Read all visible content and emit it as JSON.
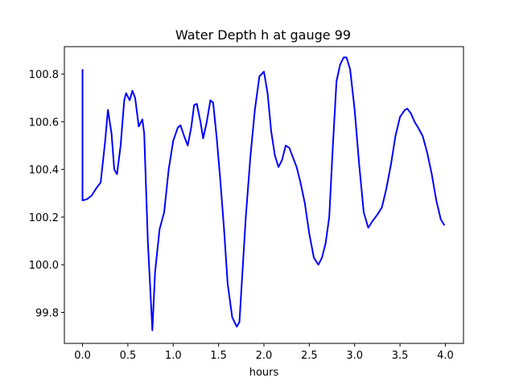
{
  "chart_data": {
    "type": "line",
    "title": "Water Depth h at gauge 99",
    "xlabel": "hours",
    "ylabel": "",
    "xlim": [
      -0.2,
      4.2
    ],
    "ylim": [
      99.67,
      100.915
    ],
    "x_ticks": [
      0.0,
      0.5,
      1.0,
      1.5,
      2.0,
      2.5,
      3.0,
      3.5,
      4.0
    ],
    "x_tick_labels": [
      "0.0",
      "0.5",
      "1.0",
      "1.5",
      "2.0",
      "2.5",
      "3.0",
      "3.5",
      "4.0"
    ],
    "y_ticks": [
      99.8,
      100.0,
      100.2,
      100.4,
      100.6,
      100.8
    ],
    "y_tick_labels": [
      "99.8",
      "100.0",
      "100.2",
      "100.4",
      "100.6",
      "100.8"
    ],
    "grid": false,
    "legend": "none",
    "series": [
      {
        "color": "#0000ff",
        "x": [
          0.0,
          0.0,
          0.05,
          0.1,
          0.15,
          0.2,
          0.25,
          0.28,
          0.32,
          0.35,
          0.38,
          0.42,
          0.46,
          0.48,
          0.52,
          0.55,
          0.58,
          0.62,
          0.66,
          0.68,
          0.72,
          0.77,
          0.8,
          0.85,
          0.9,
          0.95,
          1.0,
          1.05,
          1.08,
          1.12,
          1.16,
          1.2,
          1.23,
          1.26,
          1.3,
          1.33,
          1.37,
          1.41,
          1.44,
          1.48,
          1.52,
          1.56,
          1.6,
          1.65,
          1.7,
          1.73,
          1.76,
          1.8,
          1.85,
          1.9,
          1.95,
          2.0,
          2.04,
          2.08,
          2.12,
          2.16,
          2.2,
          2.24,
          2.28,
          2.32,
          2.36,
          2.4,
          2.45,
          2.5,
          2.55,
          2.6,
          2.64,
          2.68,
          2.72,
          2.76,
          2.8,
          2.84,
          2.88,
          2.91,
          2.95,
          3.0,
          3.05,
          3.1,
          3.15,
          3.2,
          3.25,
          3.3,
          3.35,
          3.4,
          3.45,
          3.5,
          3.55,
          3.58,
          3.62,
          3.66,
          3.7,
          3.75,
          3.8,
          3.85,
          3.9,
          3.95,
          3.99
        ],
        "values": [
          100.82,
          100.27,
          100.275,
          100.29,
          100.32,
          100.345,
          100.52,
          100.65,
          100.55,
          100.4,
          100.38,
          100.5,
          100.69,
          100.72,
          100.69,
          100.73,
          100.7,
          100.58,
          100.61,
          100.55,
          100.1,
          99.725,
          99.97,
          100.15,
          100.22,
          100.4,
          100.52,
          100.575,
          100.585,
          100.54,
          100.5,
          100.58,
          100.67,
          100.675,
          100.6,
          100.53,
          100.6,
          100.69,
          100.68,
          100.53,
          100.35,
          100.15,
          99.92,
          99.78,
          99.74,
          99.76,
          99.95,
          100.2,
          100.45,
          100.65,
          100.79,
          100.81,
          100.72,
          100.56,
          100.46,
          100.41,
          100.44,
          100.5,
          100.49,
          100.45,
          100.41,
          100.35,
          100.26,
          100.13,
          100.03,
          100.0,
          100.03,
          100.09,
          100.2,
          100.5,
          100.77,
          100.84,
          100.87,
          100.87,
          100.82,
          100.65,
          100.42,
          100.22,
          100.155,
          100.185,
          100.21,
          100.24,
          100.32,
          100.42,
          100.54,
          100.62,
          100.648,
          100.655,
          100.635,
          100.6,
          100.575,
          100.54,
          100.47,
          100.38,
          100.27,
          100.19,
          100.165
        ]
      }
    ]
  }
}
